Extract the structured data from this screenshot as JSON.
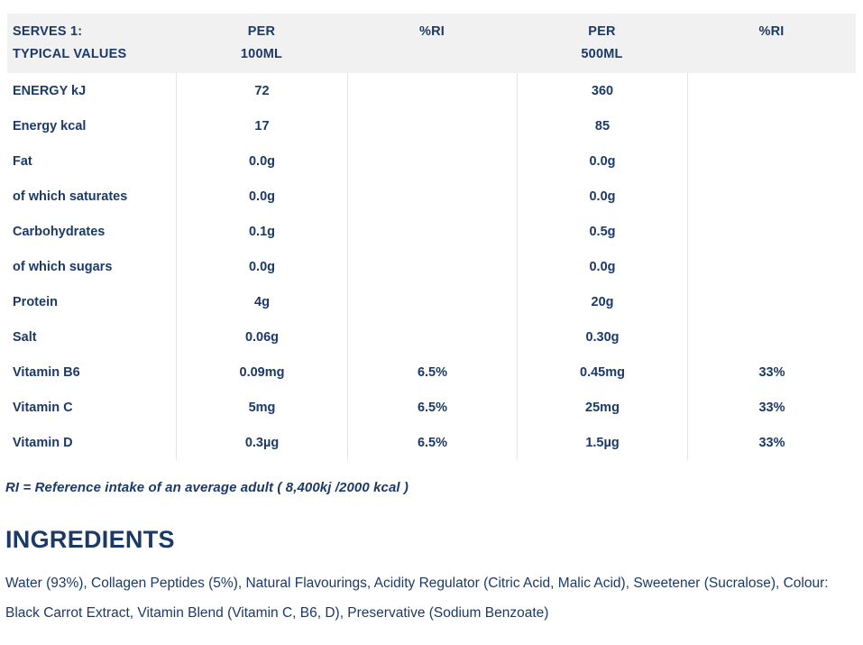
{
  "colors": {
    "text_navy": "#1b3a67",
    "header_bg": "#f1f1f2",
    "divider": "#e4e4e6"
  },
  "table": {
    "header": {
      "col1_line1": "SERVES 1:",
      "col1_line2": "TYPICAL VALUES",
      "col2_line1": "PER",
      "col2_line2": "100ML",
      "col3_line1": "%RI",
      "col4_line1": "PER",
      "col4_line2": "500ML",
      "col5_line1": "%RI"
    },
    "rows": [
      {
        "label": "ENERGY kJ",
        "per_100ml": "72",
        "ri_100ml": "",
        "per_500ml": "360",
        "ri_500ml": ""
      },
      {
        "label": "Energy kcal",
        "per_100ml": "17",
        "ri_100ml": "",
        "per_500ml": "85",
        "ri_500ml": ""
      },
      {
        "label": "Fat",
        "per_100ml": "0.0g",
        "ri_100ml": "",
        "per_500ml": "0.0g",
        "ri_500ml": ""
      },
      {
        "label": "of which saturates",
        "per_100ml": "0.0g",
        "ri_100ml": "",
        "per_500ml": "0.0g",
        "ri_500ml": ""
      },
      {
        "label": "Carbohydrates",
        "per_100ml": "0.1g",
        "ri_100ml": "",
        "per_500ml": "0.5g",
        "ri_500ml": ""
      },
      {
        "label": "of which sugars",
        "per_100ml": "0.0g",
        "ri_100ml": "",
        "per_500ml": "0.0g",
        "ri_500ml": ""
      },
      {
        "label": "Protein",
        "per_100ml": "4g",
        "ri_100ml": "",
        "per_500ml": "20g",
        "ri_500ml": ""
      },
      {
        "label": "Salt",
        "per_100ml": "0.06g",
        "ri_100ml": "",
        "per_500ml": "0.30g",
        "ri_500ml": ""
      },
      {
        "label": "Vitamin B6",
        "per_100ml": "0.09mg",
        "ri_100ml": "6.5%",
        "per_500ml": "0.45mg",
        "ri_500ml": "33%"
      },
      {
        "label": "Vitamin C",
        "per_100ml": "5mg",
        "ri_100ml": "6.5%",
        "per_500ml": "25mg",
        "ri_500ml": "33%"
      },
      {
        "label": "Vitamin D",
        "per_100ml": "0.3µg",
        "ri_100ml": "6.5%",
        "per_500ml": "1.5µg",
        "ri_500ml": "33%"
      }
    ]
  },
  "footnote": "RI = Reference intake of an average adult ( 8,400kj /2000 kcal )",
  "ingredients": {
    "heading": "INGREDIENTS",
    "text": "Water (93%), Collagen Peptides (5%), Natural Flavourings, Acidity Regulator (Citric Acid, Malic Acid), Sweetener (Sucralose), Colour: Black Carrot Extract, Vitamin Blend (Vitamin C, B6, D), Preservative (Sodium Benzoate)"
  }
}
